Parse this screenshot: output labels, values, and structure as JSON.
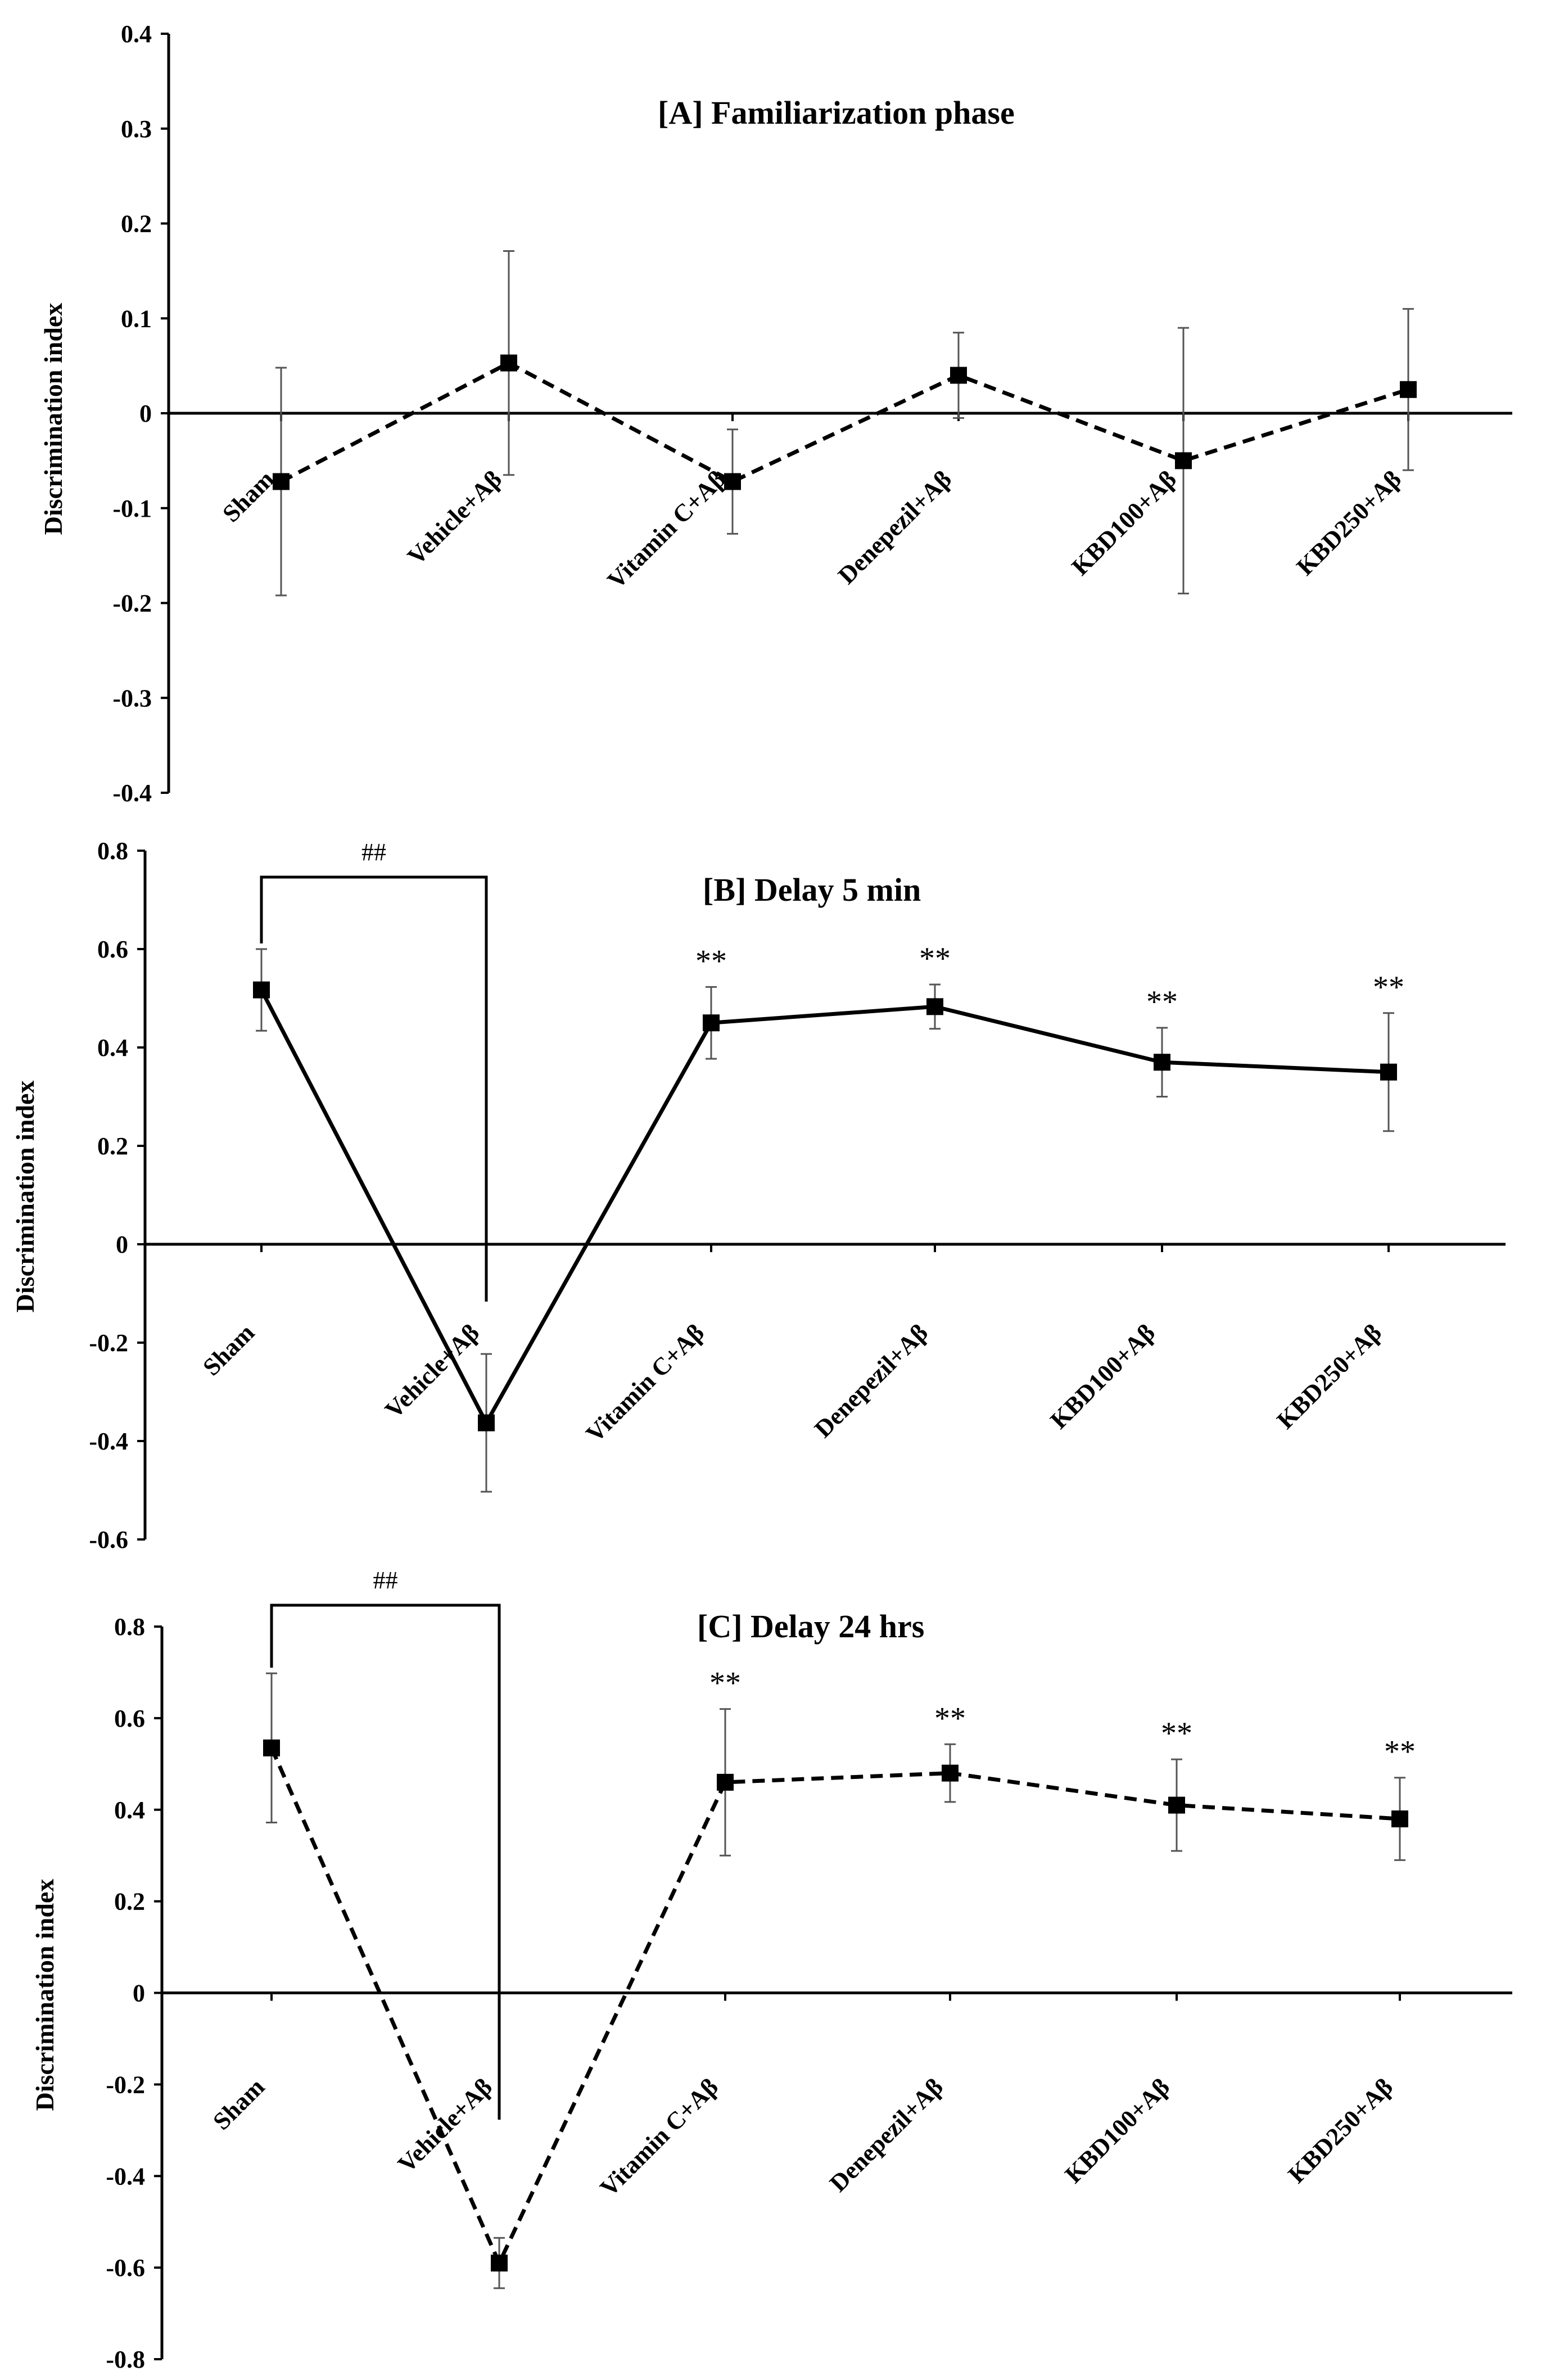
{
  "y_axis_label": "Discrimination index",
  "chart_data": [
    {
      "type": "line",
      "title": "[A] Familiarization phase",
      "ylabel": "Discrimination index",
      "ylim": [
        -0.4,
        0.4
      ],
      "yticks": [
        0.4,
        0.3,
        0.2,
        0.1,
        0,
        -0.1,
        -0.2,
        -0.3,
        -0.4
      ],
      "line_style": "dashed",
      "categories": [
        "Sham",
        "Vehicle+Aβ",
        "Vitamin C+Aβ",
        "Denepezil+Aβ",
        "KBD100+Aβ",
        "KBD250+Aβ"
      ],
      "values": [
        -0.072,
        0.053,
        -0.072,
        0.04,
        -0.05,
        0.025
      ],
      "errors": [
        0.12,
        0.118,
        0.055,
        0.045,
        0.14,
        0.085
      ],
      "markers": [
        "",
        "",
        "",
        "",
        "",
        ""
      ],
      "bracket": null
    },
    {
      "type": "line",
      "title": "[B] Delay 5 min",
      "ylabel": "Discrimination index",
      "ylim": [
        -0.6,
        0.8
      ],
      "yticks": [
        0.8,
        0.6,
        0.4,
        0.2,
        0,
        -0.2,
        -0.4,
        -0.6
      ],
      "line_style": "solid",
      "categories": [
        "Sham",
        "Vehicle+Aβ",
        "Vitamin C+Aβ",
        "Denepezil+Aβ",
        "KBD100+Aβ",
        "KBD250+Aβ"
      ],
      "values": [
        0.517,
        -0.363,
        0.45,
        0.483,
        0.37,
        0.35
      ],
      "errors": [
        0.083,
        0.14,
        0.073,
        0.045,
        0.07,
        0.12
      ],
      "markers": [
        "",
        "",
        "**",
        "**",
        "**",
        "**"
      ],
      "bracket": {
        "from": 0,
        "to": 1,
        "label": "##"
      }
    },
    {
      "type": "line",
      "title": "[C] Delay 24 hrs",
      "ylabel": "Discrimination index",
      "ylim": [
        -0.8,
        0.8
      ],
      "yticks": [
        0.8,
        0.6,
        0.4,
        0.2,
        0,
        -0.2,
        -0.4,
        -0.6,
        -0.8
      ],
      "line_style": "dashed",
      "categories": [
        "Sham",
        "Vehicle+Aβ",
        "Vitamin C+Aβ",
        "Denepezil+Aβ",
        "KBD100+Aβ",
        "KBD250+Aβ"
      ],
      "values": [
        0.535,
        -0.59,
        0.46,
        0.48,
        0.41,
        0.38
      ],
      "errors": [
        0.163,
        0.055,
        0.16,
        0.063,
        0.1,
        0.09
      ],
      "markers": [
        "",
        "",
        "**",
        "**",
        "**",
        "**"
      ],
      "bracket": {
        "from": 0,
        "to": 1,
        "label": "##"
      }
    }
  ]
}
